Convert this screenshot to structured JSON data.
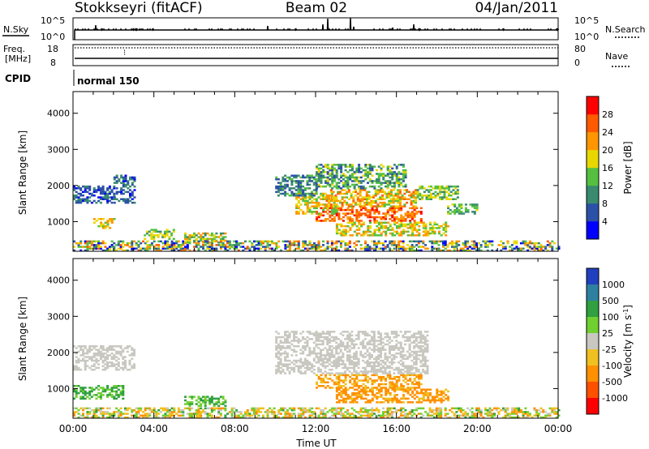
{
  "header": {
    "station": "Stokkseyri (fitACF)",
    "beam": "Beam 02",
    "date": "04/Jan/2011"
  },
  "noise_panel": {
    "left_label": "N.Sky",
    "left_top_tick": "10^5",
    "left_bottom_tick": "10^0",
    "right_label": "N.Search",
    "right_top_tick": "10^5",
    "right_bottom_tick": "10^0"
  },
  "freq_panel": {
    "left_label_line1": "Freq.",
    "left_label_line2": "[MHz]",
    "left_top_tick": "18",
    "left_bottom_tick": "8",
    "right_label": "Nave",
    "right_top_tick": "80",
    "right_bottom_tick": "0"
  },
  "cpid": {
    "label": "CPID",
    "mode": "normal 150"
  },
  "chart_data": [
    {
      "type": "heatmap",
      "title": "",
      "parameter": "Power",
      "xlabel": "Time UT",
      "ylabel": "Slant Range [km]",
      "x_range_hours": [
        0,
        24
      ],
      "ylim": [
        180,
        4600
      ],
      "y_ticks": [
        "1000",
        "2000",
        "3000",
        "4000"
      ],
      "colorbar_label": "Power [dB]",
      "colorbar_ticks": [
        "4",
        "8",
        "12",
        "16",
        "20",
        "24",
        "28"
      ],
      "colorbar_range": [
        0,
        32
      ],
      "colors": [
        "#0000ff",
        "#2b50a8",
        "#3a8a6e",
        "#55c040",
        "#e8d800",
        "#ff9600",
        "#ff5a00",
        "#ff0000"
      ],
      "scatter_regions": [
        {
          "t": [
            12.0,
            17.2
          ],
          "r": [
            1000,
            1400
          ],
          "v": [
            20,
            30
          ]
        },
        {
          "t": [
            11.0,
            13.0
          ],
          "r": [
            1200,
            1800
          ],
          "v": [
            12,
            24
          ]
        },
        {
          "t": [
            13.0,
            18.5
          ],
          "r": [
            600,
            1000
          ],
          "v": [
            12,
            24
          ]
        },
        {
          "t": [
            12.5,
            17.0
          ],
          "r": [
            1400,
            1900
          ],
          "v": [
            14,
            26
          ]
        },
        {
          "t": [
            10.0,
            12.0
          ],
          "r": [
            1700,
            2300
          ],
          "v": [
            4,
            14
          ]
        },
        {
          "t": [
            12.0,
            16.5
          ],
          "r": [
            1900,
            2600
          ],
          "v": [
            6,
            18
          ]
        },
        {
          "t": [
            17.0,
            19.0
          ],
          "r": [
            1600,
            2000
          ],
          "v": [
            10,
            20
          ]
        },
        {
          "t": [
            18.5,
            20.0
          ],
          "r": [
            1200,
            1500
          ],
          "v": [
            10,
            18
          ]
        },
        {
          "t": [
            1.0,
            2.0
          ],
          "r": [
            800,
            1100
          ],
          "v": [
            14,
            24
          ]
        },
        {
          "t": [
            0.0,
            2.0
          ],
          "r": [
            1500,
            2000
          ],
          "v": [
            3,
            10
          ]
        },
        {
          "t": [
            2.0,
            3.0
          ],
          "r": [
            1500,
            2300
          ],
          "v": [
            3,
            12
          ]
        },
        {
          "t": [
            5.5,
            7.5
          ],
          "r": [
            400,
            700
          ],
          "v": [
            10,
            22
          ]
        },
        {
          "t": [
            3.5,
            5.0
          ],
          "r": [
            500,
            800
          ],
          "v": [
            10,
            20
          ]
        },
        {
          "t": [
            0.0,
            24.0
          ],
          "r": [
            180,
            450
          ],
          "v": [
            2,
            26
          ]
        }
      ]
    },
    {
      "type": "heatmap",
      "title": "",
      "parameter": "Velocity",
      "xlabel": "Time UT",
      "ylabel": "Slant Range [km]",
      "x_range_hours": [
        0,
        24
      ],
      "x_ticks": [
        "00:00",
        "04:00",
        "08:00",
        "12:00",
        "16:00",
        "20:00",
        "00:00"
      ],
      "ylim": [
        180,
        4600
      ],
      "y_ticks": [
        "1000",
        "2000",
        "3000",
        "4000"
      ],
      "colorbar_label": "Velocity [m s^-1]",
      "colorbar_label_main": "Velocity [m s",
      "colorbar_label_exp": "-1",
      "colorbar_label_end": "]",
      "colorbar_ticks": [
        "1000",
        "500",
        "100",
        "25",
        "-25",
        "-100",
        "-500",
        "-1000"
      ],
      "colors": [
        "#2040c0",
        "#2e80a0",
        "#30a040",
        "#70d030",
        "#c8c8c0",
        "#f0c020",
        "#ff9000",
        "#ff5000",
        "#ff0000"
      ],
      "scatter_regions": [
        {
          "t": [
            12.0,
            17.2
          ],
          "r": [
            1000,
            1400
          ],
          "v": [
            -200,
            -30
          ]
        },
        {
          "t": [
            13.0,
            18.5
          ],
          "r": [
            600,
            1000
          ],
          "v": [
            -300,
            -50
          ]
        },
        {
          "t": [
            10.0,
            17.5
          ],
          "r": [
            1400,
            2600
          ],
          "v": [
            -20,
            20
          ]
        },
        {
          "t": [
            0.0,
            3.0
          ],
          "r": [
            1500,
            2200
          ],
          "v": [
            -20,
            20
          ]
        },
        {
          "t": [
            0.0,
            2.5
          ],
          "r": [
            700,
            1100
          ],
          "v": [
            30,
            200
          ]
        },
        {
          "t": [
            5.5,
            7.5
          ],
          "r": [
            500,
            800
          ],
          "v": [
            30,
            150
          ]
        },
        {
          "t": [
            0.0,
            24.0
          ],
          "r": [
            180,
            450
          ],
          "v": [
            -150,
            120
          ]
        }
      ]
    }
  ]
}
